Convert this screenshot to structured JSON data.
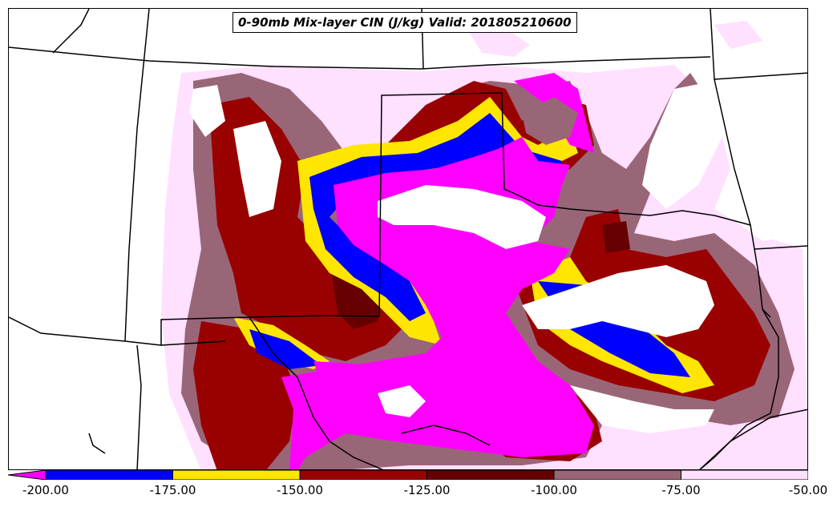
{
  "title": "0-90mb Mix-layer CIN (J/kg) Valid: 201805210600",
  "colors": {
    "lt_minus_200": "#ff00ff",
    "m200_m175": "#0000ff",
    "m175_m150": "#ffe600",
    "m150_m125": "#990000",
    "m125_m100": "#660000",
    "m100_m75": "#996677",
    "m75_m50": "#ffe0ff",
    "background": "#ffffff"
  },
  "colorbar": {
    "ticks": [
      "-200.00",
      "-175.00",
      "-150.00",
      "-125.00",
      "-100.00",
      "-75.00",
      "-50.00"
    ],
    "bins": [
      {
        "from": -200,
        "to": -175,
        "color": "#0000ff"
      },
      {
        "from": -175,
        "to": -150,
        "color": "#ffe600"
      },
      {
        "from": -150,
        "to": -125,
        "color": "#990000"
      },
      {
        "from": -125,
        "to": -100,
        "color": "#660000"
      },
      {
        "from": -100,
        "to": -75,
        "color": "#996677"
      },
      {
        "from": -75,
        "to": -50,
        "color": "#ffe0ff"
      }
    ],
    "extend_low_color": "#ff00ff"
  }
}
